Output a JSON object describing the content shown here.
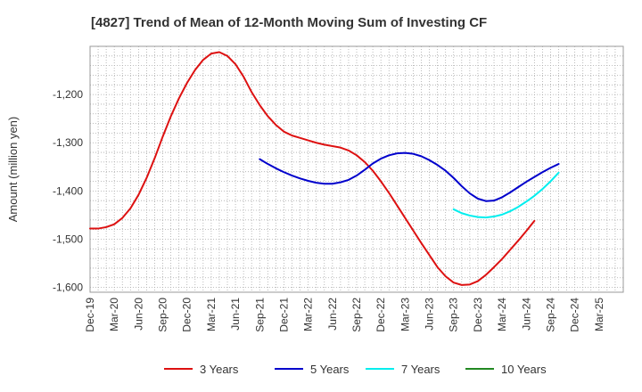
{
  "chart_data": {
    "type": "line",
    "title": "[4827]  Trend of Mean of 12-Month Moving Sum of Investing CF",
    "xlabel": "",
    "ylabel": "Amount (million yen)",
    "ylim": [
      -1610,
      -1100
    ],
    "yticks": [
      -1200,
      -1300,
      -1400,
      -1500,
      -1600
    ],
    "ytick_labels": [
      "-1,200",
      "-1,300",
      "-1,400",
      "-1,500",
      "-1,600"
    ],
    "x_start": "Dec-19",
    "x_months": 66,
    "xtick_labels": [
      "Dec-19",
      "Mar-20",
      "Jun-20",
      "Sep-20",
      "Dec-20",
      "Mar-21",
      "Jun-21",
      "Sep-21",
      "Dec-21",
      "Mar-22",
      "Jun-22",
      "Sep-22",
      "Dec-22",
      "Mar-23",
      "Jun-23",
      "Sep-23",
      "Dec-23",
      "Mar-24",
      "Jun-24",
      "Sep-24",
      "Dec-24",
      "Mar-25"
    ],
    "grid": true,
    "legend_position": "bottom",
    "series": [
      {
        "name": "3 Years",
        "color": "#dd1111",
        "start_index": 0,
        "values": [
          -1478,
          -1478,
          -1475,
          -1469,
          -1456,
          -1436,
          -1408,
          -1373,
          -1332,
          -1287,
          -1245,
          -1208,
          -1176,
          -1149,
          -1128,
          -1115,
          -1112,
          -1120,
          -1137,
          -1163,
          -1195,
          -1222,
          -1245,
          -1263,
          -1277,
          -1285,
          -1290,
          -1295,
          -1300,
          -1304,
          -1307,
          -1310,
          -1316,
          -1326,
          -1340,
          -1358,
          -1380,
          -1404,
          -1430,
          -1456,
          -1482,
          -1508,
          -1533,
          -1558,
          -1577,
          -1590,
          -1595,
          -1594,
          -1587,
          -1574,
          -1558,
          -1541,
          -1522,
          -1503,
          -1483,
          -1462
        ]
      },
      {
        "name": "5 Years",
        "color": "#0000cc",
        "start_index": 21,
        "values": [
          -1334,
          -1344,
          -1353,
          -1361,
          -1368,
          -1374,
          -1379,
          -1383,
          -1385,
          -1385,
          -1382,
          -1377,
          -1368,
          -1356,
          -1343,
          -1333,
          -1326,
          -1322,
          -1321,
          -1323,
          -1328,
          -1336,
          -1346,
          -1358,
          -1373,
          -1390,
          -1405,
          -1416,
          -1421,
          -1420,
          -1413,
          -1403,
          -1392,
          -1381,
          -1371,
          -1361,
          -1352,
          -1344
        ]
      },
      {
        "name": "7 Years",
        "color": "#00eeee",
        "start_index": 45,
        "values": [
          -1438,
          -1446,
          -1451,
          -1454,
          -1455,
          -1453,
          -1449,
          -1442,
          -1433,
          -1422,
          -1410,
          -1396,
          -1380,
          -1362
        ]
      },
      {
        "name": "10 Years",
        "color": "#228822",
        "start_index": 0,
        "values": []
      }
    ]
  }
}
